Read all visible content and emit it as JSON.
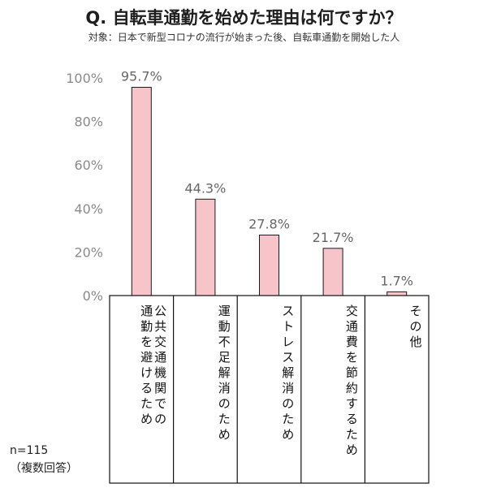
{
  "chart_data": {
    "type": "bar",
    "title": "Q. 自転車通勤を始めた理由は何ですか？",
    "subtitle": "対象：日本で新型コロナの流行が始まった後、自転車通勤を開始した人",
    "categories": [
      "公共交通機関での通勤を避けるため",
      "運動不足解消のため",
      "ストレス解消のため",
      "交通費を節約するため",
      "その他"
    ],
    "category_columns": [
      [
        "公共交通機関での",
        "通勤を避けるため"
      ],
      [
        "運動不足解消のため"
      ],
      [
        "ストレス解消のため"
      ],
      [
        "交通費を節約するため"
      ],
      [
        "その他"
      ]
    ],
    "values": [
      95.7,
      44.3,
      27.8,
      21.7,
      1.7
    ],
    "value_labels": [
      "95.7%",
      "44.3%",
      "27.8%",
      "21.7%",
      "1.7%"
    ],
    "y_ticks": [
      0,
      20,
      40,
      60,
      80,
      100
    ],
    "y_tick_labels": [
      "0%",
      "20%",
      "40%",
      "60%",
      "80%",
      "100%"
    ],
    "ylim": [
      0,
      100
    ],
    "grid": false,
    "bar_color": "#f7c5c9",
    "bar_edge_color": "#1a1a1a"
  },
  "notes": {
    "sample_size": "n=115",
    "multiple_answers": "（複数回答）"
  }
}
